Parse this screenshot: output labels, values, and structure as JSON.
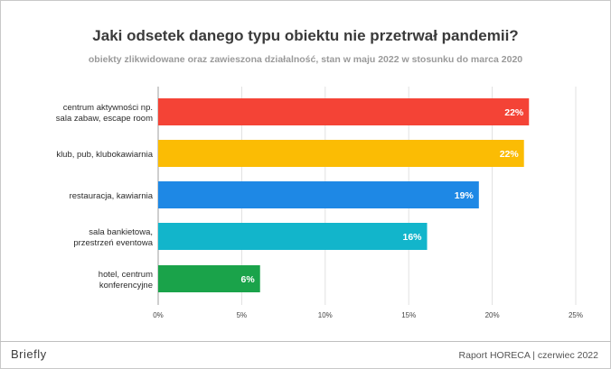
{
  "header": {
    "title": "Jaki odsetek danego typu obiektu nie przetrwał pandemii?",
    "subtitle": "obiekty zlikwidowane oraz zawieszona działalność, stan w maju 2022 w stosunku do marca 2020"
  },
  "footer": {
    "brand": "Briefly",
    "source": "Raport HORECA | czerwiec 2022"
  },
  "chart_data": {
    "type": "bar",
    "orientation": "horizontal",
    "categories": [
      [
        "centrum aktywności np.",
        "sala zabaw, escape room"
      ],
      [
        "klub, pub, klubokawiarnia"
      ],
      [
        "restauracja, kawiarnia"
      ],
      [
        "sala bankietowa,",
        "przestrzeń eventowa"
      ],
      [
        "hotel, centrum",
        "konferencyjne"
      ]
    ],
    "values": [
      22.2,
      21.9,
      19.2,
      16.1,
      6.1
    ],
    "data_labels": [
      "22%",
      "22%",
      "19%",
      "16%",
      "6%"
    ],
    "colors": [
      "#f44336",
      "#fbbc04",
      "#1e88e5",
      "#12b5cb",
      "#1aa34a"
    ],
    "x_ticks": [
      "0%",
      "5%",
      "10%",
      "15%",
      "20%",
      "25%"
    ],
    "xlim": [
      0,
      25
    ],
    "grid": true
  }
}
